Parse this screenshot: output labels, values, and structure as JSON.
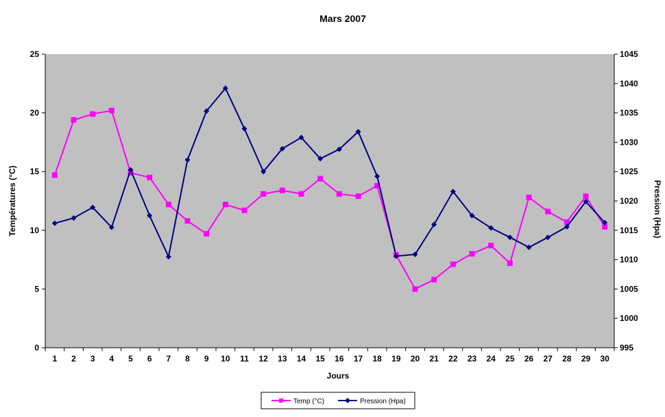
{
  "chart_data": {
    "type": "line",
    "title": "Mars 2007",
    "xlabel": "Jours",
    "ylabel_left": "Températures (°C)",
    "ylabel_right": "Pression (Hpa)",
    "x": [
      1,
      2,
      3,
      4,
      5,
      6,
      7,
      8,
      9,
      10,
      11,
      12,
      13,
      14,
      15,
      16,
      17,
      18,
      19,
      20,
      21,
      22,
      23,
      24,
      25,
      26,
      27,
      28,
      29,
      30
    ],
    "yleft_lim": [
      0,
      25
    ],
    "yleft_ticks": [
      0,
      5,
      10,
      15,
      20,
      25
    ],
    "yright_lim": [
      995,
      1045
    ],
    "yright_ticks": [
      995,
      1000,
      1005,
      1010,
      1015,
      1020,
      1025,
      1030,
      1035,
      1040,
      1045
    ],
    "grid": false,
    "legend_position": "bottom-center",
    "plot_background": "#c0c0c0",
    "series": [
      {
        "name": "Temp (°C)",
        "axis": "left",
        "marker": "square",
        "color": "#ff00ff",
        "values": [
          14.7,
          19.4,
          19.9,
          20.2,
          14.9,
          14.5,
          12.2,
          10.8,
          9.7,
          12.2,
          11.7,
          13.1,
          13.4,
          13.1,
          14.4,
          13.1,
          12.9,
          13.8,
          7.9,
          5.0,
          5.8,
          7.1,
          8.0,
          8.7,
          7.2,
          12.8,
          11.6,
          10.7,
          12.9,
          10.3
        ]
      },
      {
        "name": "Pression (Hpa)",
        "axis": "right",
        "marker": "diamond",
        "color": "#000080",
        "values": [
          1016.2,
          1017.1,
          1018.9,
          1015.5,
          1025.3,
          1017.5,
          1010.5,
          1027.0,
          1035.3,
          1039.2,
          1032.3,
          1025.0,
          1028.9,
          1030.8,
          1027.2,
          1028.8,
          1031.8,
          1024.2,
          1010.6,
          1010.9,
          1016.0,
          1021.6,
          1017.5,
          1015.4,
          1013.8,
          1012.1,
          1013.8,
          1015.6,
          1019.9,
          1016.3
        ]
      }
    ]
  }
}
